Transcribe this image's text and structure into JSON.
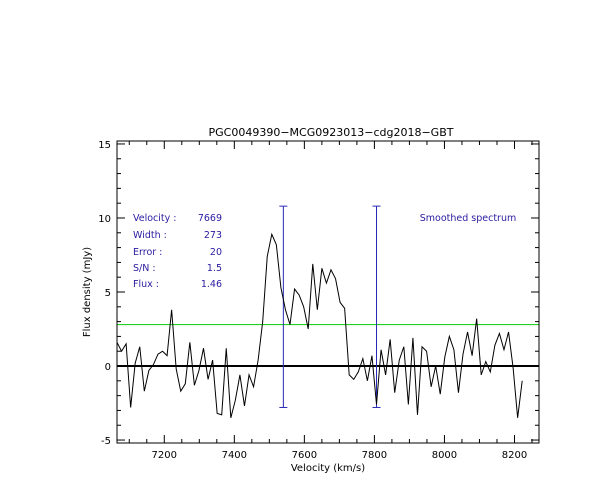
{
  "chart_data": {
    "type": "line",
    "title": "PGC0049390−MCG0923013−cdg2018−GBT",
    "xlabel": "Velocity (km/s)",
    "ylabel": "Flux density (mJy)",
    "xlim": [
      7065,
      8270
    ],
    "ylim": [
      -5.2,
      15.2
    ],
    "x_ticks": [
      7200,
      7400,
      7600,
      7800,
      8000,
      8200
    ],
    "y_ticks": [
      -5,
      0,
      5,
      10,
      15
    ],
    "grid": false,
    "zero_line": 0,
    "threshold_line": 2.8,
    "velocity_window": {
      "low": 7540,
      "high": 7806,
      "marker_top": 10.8,
      "marker_bottom": -2.8
    },
    "series": [
      {
        "values_xy": [
          [
            7065,
            1.6
          ],
          [
            7078,
            1.0
          ],
          [
            7091,
            1.5
          ],
          [
            7104,
            -2.8
          ],
          [
            7117,
            0.2
          ],
          [
            7130,
            1.3
          ],
          [
            7143,
            -1.7
          ],
          [
            7156,
            -0.3
          ],
          [
            7169,
            0.1
          ],
          [
            7182,
            0.8
          ],
          [
            7195,
            1.0
          ],
          [
            7208,
            0.7
          ],
          [
            7221,
            3.8
          ],
          [
            7234,
            -0.2
          ],
          [
            7247,
            -1.7
          ],
          [
            7260,
            -1.2
          ],
          [
            7273,
            1.6
          ],
          [
            7286,
            -1.3
          ],
          [
            7299,
            -0.3
          ],
          [
            7312,
            1.2
          ],
          [
            7325,
            -0.9
          ],
          [
            7338,
            0.4
          ],
          [
            7351,
            -3.2
          ],
          [
            7364,
            -3.3
          ],
          [
            7377,
            1.2
          ],
          [
            7390,
            -3.5
          ],
          [
            7403,
            -2.3
          ],
          [
            7416,
            -0.6
          ],
          [
            7429,
            -2.7
          ],
          [
            7442,
            -0.6
          ],
          [
            7455,
            -1.4
          ],
          [
            7468,
            0.4
          ],
          [
            7481,
            3.0
          ],
          [
            7494,
            7.4
          ],
          [
            7507,
            8.9
          ],
          [
            7520,
            8.2
          ],
          [
            7533,
            5.3
          ],
          [
            7546,
            3.8
          ],
          [
            7559,
            2.8
          ],
          [
            7572,
            5.2
          ],
          [
            7585,
            4.8
          ],
          [
            7598,
            4.0
          ],
          [
            7611,
            2.5
          ],
          [
            7624,
            6.9
          ],
          [
            7637,
            3.8
          ],
          [
            7650,
            6.6
          ],
          [
            7663,
            5.6
          ],
          [
            7676,
            6.5
          ],
          [
            7689,
            5.9
          ],
          [
            7702,
            4.3
          ],
          [
            7715,
            3.9
          ],
          [
            7728,
            -0.6
          ],
          [
            7741,
            -0.9
          ],
          [
            7754,
            -0.4
          ],
          [
            7767,
            0.5
          ],
          [
            7780,
            -1.0
          ],
          [
            7793,
            0.7
          ],
          [
            7806,
            -2.6
          ],
          [
            7819,
            1.1
          ],
          [
            7832,
            -0.6
          ],
          [
            7845,
            1.8
          ],
          [
            7858,
            -1.8
          ],
          [
            7871,
            0.4
          ],
          [
            7884,
            1.3
          ],
          [
            7897,
            -2.6
          ],
          [
            7910,
            1.9
          ],
          [
            7923,
            -3.3
          ],
          [
            7936,
            1.3
          ],
          [
            7949,
            1.0
          ],
          [
            7962,
            -1.4
          ],
          [
            7975,
            0.0
          ],
          [
            7988,
            -1.9
          ],
          [
            8001,
            0.6
          ],
          [
            8014,
            2.0
          ],
          [
            8027,
            1.1
          ],
          [
            8040,
            -1.8
          ],
          [
            8053,
            0.8
          ],
          [
            8066,
            2.3
          ],
          [
            8079,
            0.7
          ],
          [
            8092,
            3.2
          ],
          [
            8105,
            -0.6
          ],
          [
            8118,
            0.3
          ],
          [
            8131,
            -0.4
          ],
          [
            8144,
            1.4
          ],
          [
            8157,
            2.2
          ],
          [
            8170,
            1.1
          ],
          [
            8183,
            2.3
          ],
          [
            8196,
            -0.1
          ],
          [
            8209,
            -3.5
          ],
          [
            8222,
            -1.0
          ]
        ]
      }
    ],
    "annotations": {
      "labels": [
        "Velocity :",
        "Width :",
        "Error :",
        "S/N :",
        "Flux :"
      ],
      "values": [
        "7669",
        "273",
        "20",
        "1.5",
        "1.46"
      ],
      "note": "Smoothed spectrum"
    },
    "colors": {
      "spectrum": "#000000",
      "window": "#2a2ab4",
      "threshold": "#21d221",
      "annotation": "#2a1aa0"
    }
  }
}
